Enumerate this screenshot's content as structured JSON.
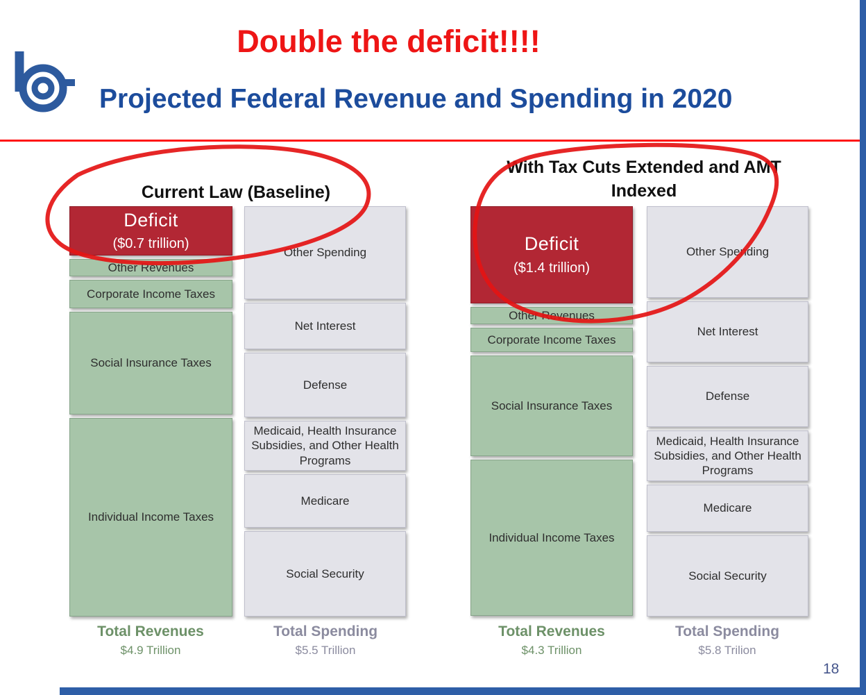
{
  "annotation": {
    "title": "Double the deficit!!!!",
    "color": "#ee1515"
  },
  "header": {
    "title": "Projected Federal Revenue and Spending in 2020"
  },
  "footer": {
    "page_number": "18"
  },
  "icons": {
    "logo": "b-logo"
  },
  "colors": {
    "title_blue": "#1c4c9c",
    "annotation_red": "#ee1515",
    "deficit_fill": "#b22734",
    "revenue_fill": "#a7c5a9",
    "spending_fill": "#e3e3e9",
    "revenue_text": "#6d9168",
    "spending_text": "#8b8b9f"
  },
  "chart_data": [
    {
      "type": "bar",
      "scenario": "Current Law (Baseline)",
      "units": "trillions of dollars",
      "bars": [
        {
          "name": "revenues",
          "total_label": "Total Revenues",
          "total_value": "$4.9 Trillion",
          "total": 4.9,
          "segments": [
            {
              "label": "Deficit",
              "sublabel": "($0.7 trillion)",
              "value": 0.7,
              "type": "deficit"
            },
            {
              "label": "Other Revenues",
              "value": 0.25,
              "type": "revenue"
            },
            {
              "label": "Corporate Income Taxes",
              "value": 0.4,
              "type": "revenue"
            },
            {
              "label": "Social Insurance Taxes",
              "value": 1.45,
              "type": "revenue"
            },
            {
              "label": "Individual Income Taxes",
              "value": 2.8,
              "type": "revenue"
            }
          ]
        },
        {
          "name": "spending",
          "total_label": "Total Spending",
          "total_value": "$5.5 Trillion",
          "total": 5.5,
          "segments": [
            {
              "label": "Other Spending",
              "value": 1.3,
              "type": "spending"
            },
            {
              "label": "Net Interest",
              "value": 0.65,
              "type": "spending"
            },
            {
              "label": "Defense",
              "value": 0.9,
              "type": "spending"
            },
            {
              "label": "Medicaid, Health Insurance Subsidies, and Other Health Programs",
              "value": 0.7,
              "type": "spending"
            },
            {
              "label": "Medicare",
              "value": 0.75,
              "type": "spending"
            },
            {
              "label": "Social Security",
              "value": 1.2,
              "type": "spending"
            }
          ]
        }
      ]
    },
    {
      "type": "bar",
      "scenario": "With Tax Cuts Extended and AMT Indexed",
      "units": "trillions of dollars",
      "bars": [
        {
          "name": "revenues",
          "total_label": "Total Revenues",
          "total_value": "$4.3 Trillion",
          "total": 4.3,
          "segments": [
            {
              "label": "Deficit",
              "sublabel": "($1.4 trillion)",
              "value": 1.4,
              "type": "deficit"
            },
            {
              "label": "Other Revenues",
              "value": 0.25,
              "type": "revenue"
            },
            {
              "label": "Corporate Income Taxes",
              "value": 0.35,
              "type": "revenue"
            },
            {
              "label": "Social Insurance Taxes",
              "value": 1.45,
              "type": "revenue"
            },
            {
              "label": "Individual Income Taxes",
              "value": 2.25,
              "type": "revenue"
            }
          ]
        },
        {
          "name": "spending",
          "total_label": "Total Spending",
          "total_value": "$5.8 Trilion",
          "total": 5.8,
          "segments": [
            {
              "label": "Other Spending",
              "value": 1.35,
              "type": "spending"
            },
            {
              "label": "Net Interest",
              "value": 0.9,
              "type": "spending"
            },
            {
              "label": "Defense",
              "value": 0.9,
              "type": "spending"
            },
            {
              "label": "Medicaid, Health Insurance Subsidies, and Other Health Programs",
              "value": 0.75,
              "type": "spending"
            },
            {
              "label": "Medicare",
              "value": 0.7,
              "type": "spending"
            },
            {
              "label": "Social Security",
              "value": 1.2,
              "type": "spending"
            }
          ]
        }
      ]
    }
  ]
}
